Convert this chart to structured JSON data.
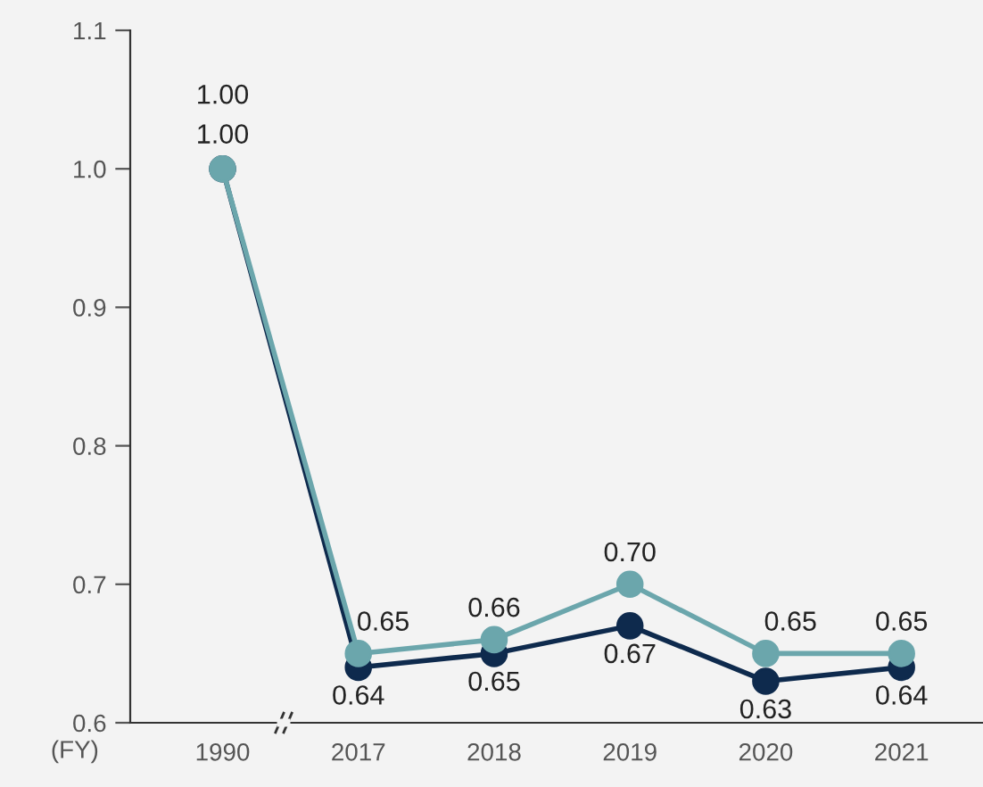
{
  "chart_data": {
    "type": "line",
    "xlabel": "(FY)",
    "categories": [
      "1990",
      "2017",
      "2018",
      "2019",
      "2020",
      "2021"
    ],
    "series": [
      {
        "color": "#0e2a4d",
        "values": [
          1.0,
          0.64,
          0.65,
          0.67,
          0.63,
          0.64
        ],
        "value_labels": [
          "1.00",
          "0.64",
          "0.65",
          "0.67",
          "0.63",
          "0.64"
        ]
      },
      {
        "color": "#6ba6ac",
        "values": [
          1.0,
          0.65,
          0.66,
          0.7,
          0.65,
          0.65
        ],
        "value_labels": [
          "1.00",
          "0.65",
          "0.66",
          "0.70",
          "0.65",
          "0.65"
        ]
      }
    ],
    "ylim": [
      0.6,
      1.1
    ],
    "yticks": [
      0.6,
      0.7,
      0.8,
      0.9,
      {
        "value": 1.0,
        "label": "1.0"
      },
      1.1
    ],
    "grid": false,
    "legend": false,
    "marker": "circle",
    "line_style": "solid"
  }
}
